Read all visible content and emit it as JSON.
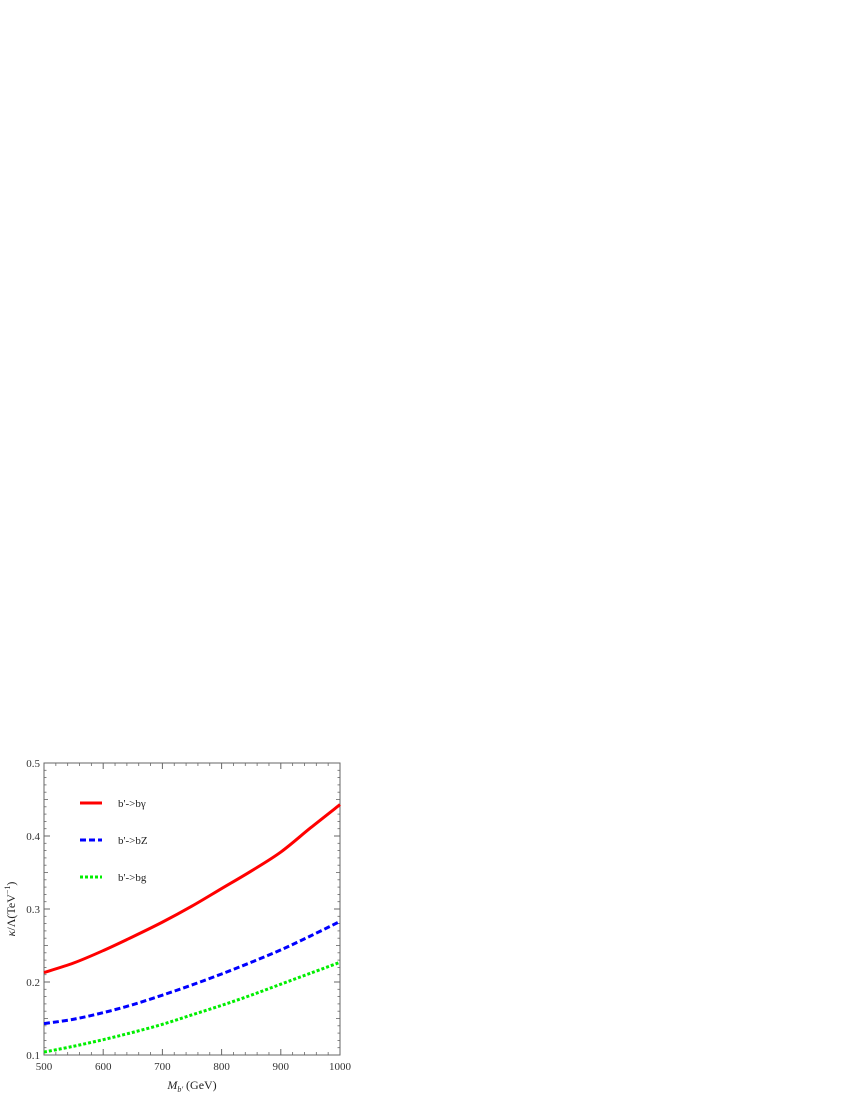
{
  "chart_data": {
    "type": "line",
    "xlabel": "M_b' (GeV)",
    "ylabel": "κ/Λ(TeV⁻¹)",
    "xlim": [
      500,
      1000
    ],
    "ylim": [
      0.1,
      0.5
    ],
    "x_ticks": [
      500,
      600,
      700,
      800,
      900,
      1000
    ],
    "y_ticks": [
      0.1,
      0.2,
      0.3,
      0.4,
      0.5
    ],
    "grid": false,
    "legend_position": "top-left",
    "series": [
      {
        "name": "b'->bγ",
        "color": "#ff0000",
        "style": "solid",
        "x": [
          500,
          550,
          600,
          650,
          700,
          750,
          800,
          850,
          900,
          950,
          1000
        ],
        "y": [
          0.213,
          0.226,
          0.243,
          0.262,
          0.282,
          0.304,
          0.328,
          0.352,
          0.378,
          0.411,
          0.443
        ]
      },
      {
        "name": "b'->bZ",
        "color": "#0000ff",
        "style": "dashed",
        "x": [
          500,
          550,
          600,
          650,
          700,
          750,
          800,
          850,
          900,
          950,
          1000
        ],
        "y": [
          0.143,
          0.149,
          0.158,
          0.169,
          0.182,
          0.196,
          0.211,
          0.227,
          0.244,
          0.263,
          0.283
        ]
      },
      {
        "name": "b'->bg",
        "color": "#00ee00",
        "style": "dotted",
        "x": [
          500,
          550,
          600,
          650,
          700,
          750,
          800,
          850,
          900,
          950,
          1000
        ],
        "y": [
          0.104,
          0.112,
          0.121,
          0.131,
          0.142,
          0.155,
          0.168,
          0.182,
          0.197,
          0.212,
          0.227
        ]
      }
    ]
  }
}
